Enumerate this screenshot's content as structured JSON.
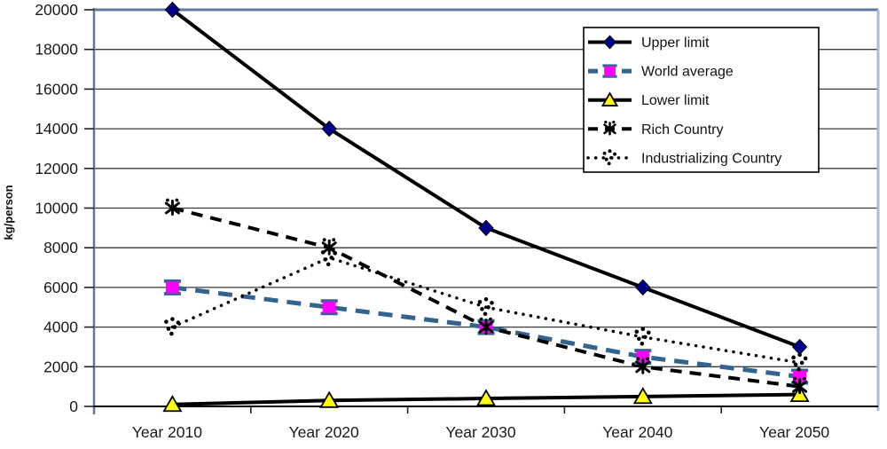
{
  "chart_data": {
    "type": "line",
    "categories": [
      "Year 2010",
      "Year 2020",
      "Year 2030",
      "Year 2040",
      "Year 2050"
    ],
    "series": [
      {
        "name": "Upper limit",
        "values": [
          20000,
          14000,
          9000,
          6000,
          3000
        ],
        "line_color": "#000000",
        "line_style": "solid",
        "line_width": 4,
        "marker": "diamond",
        "marker_fill": "#00008B",
        "marker_border": "#000000"
      },
      {
        "name": "World average",
        "values": [
          6000,
          5000,
          4000,
          2500,
          1500
        ],
        "line_color": "#33638F",
        "line_style": "dashed",
        "line_width": 5,
        "marker": "square",
        "marker_fill": "#FF00FF",
        "marker_border": "#33638F"
      },
      {
        "name": "Lower limit",
        "values": [
          100,
          300,
          400,
          500,
          600
        ],
        "line_color": "#000000",
        "line_style": "solid",
        "line_width": 4,
        "marker": "triangle",
        "marker_fill": "#FFFF00",
        "marker_border": "#000000"
      },
      {
        "name": "Rich Country",
        "values": [
          10000,
          8000,
          4000,
          2000,
          1000
        ],
        "line_color": "#000000",
        "line_style": "dashed",
        "line_width": 4,
        "marker": "star",
        "marker_fill": "#000000",
        "marker_border": "#000000"
      },
      {
        "name": "Industrializing Country",
        "values": [
          4000,
          7500,
          5000,
          3500,
          2200
        ],
        "line_color": "#000000",
        "line_style": "dotted",
        "line_width": 3.5,
        "marker": "dot-cluster",
        "marker_fill": "#000000",
        "marker_border": "#000000"
      }
    ],
    "title": "",
    "xlabel": "",
    "ylabel": "kg/person",
    "ylim": [
      0,
      20000
    ],
    "ytick_step": 2000,
    "yticks": [
      0,
      2000,
      4000,
      6000,
      8000,
      10000,
      12000,
      14000,
      16000,
      18000,
      20000
    ],
    "grid": true,
    "legend_position": "top-right",
    "legend_items": [
      "Upper limit",
      "World average",
      "Lower limit",
      "Rich Country",
      "Industrializing Country"
    ]
  },
  "colors": {
    "background": "#FFFFFF",
    "gridline": "#3A3A3A",
    "axis_zero_line": "#000000",
    "plot_border_left_top": "#60789B",
    "plot_border_right": "#A9BDD2",
    "tick_text": "#1A1A1A",
    "legend_border": "#000000",
    "legend_background": "#FFFFFF",
    "world_average_line": "#33638F",
    "upper_limit_marker": "#00008B",
    "world_average_marker": "#FF00FF",
    "lower_limit_marker": "#FFFF00"
  }
}
